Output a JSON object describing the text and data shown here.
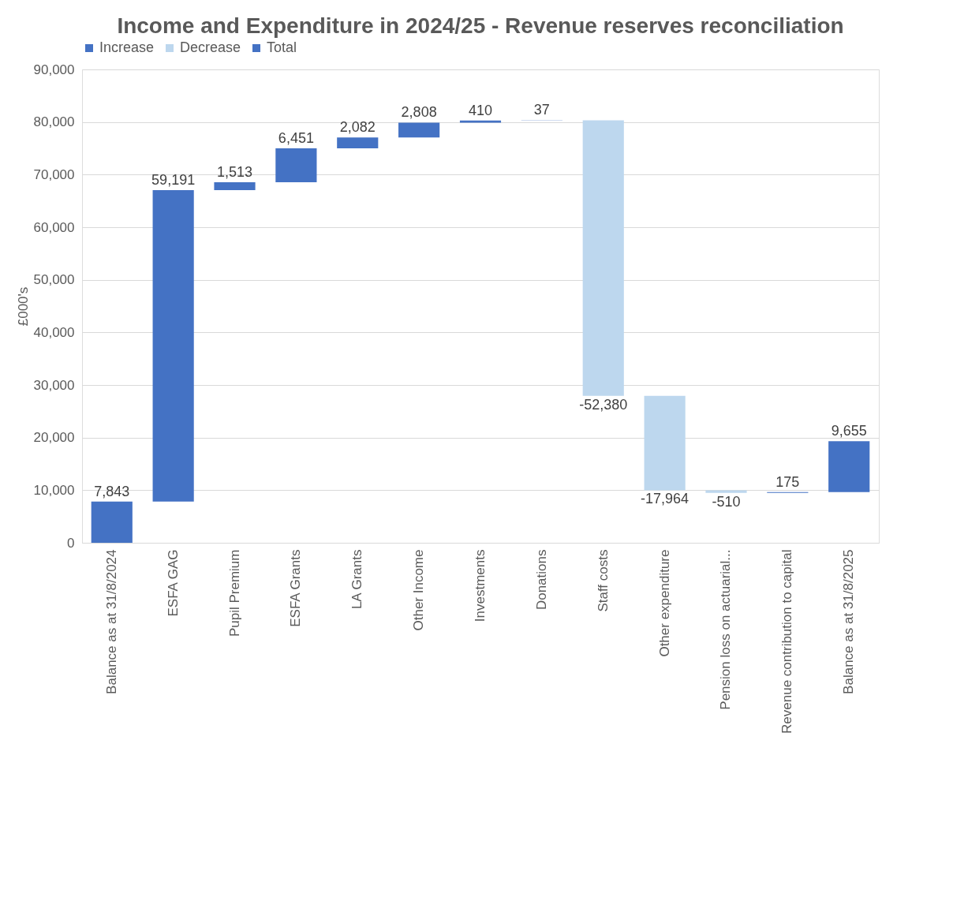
{
  "chart_data": {
    "type": "bar",
    "title": "Income and Expenditure in 2024/25 - Revenue reserves reconciliation",
    "ylabel": "£000's",
    "categories": [
      "Balance as at 31/8/2024",
      "ESFA GAG",
      "Pupil Premium",
      "ESFA Grants",
      "LA Grants",
      "Other Income",
      "Investments",
      "Donations",
      "Staff costs",
      "Other expenditure",
      "Pension loss on actuarial...",
      "Revenue contribution to capital",
      "Balance as at 31/8/2025"
    ],
    "series": [
      {
        "name": "Increase",
        "color": "#4472c4",
        "values": [
          null,
          59191,
          1513,
          6451,
          2082,
          2808,
          410,
          37,
          null,
          null,
          null,
          175,
          null
        ],
        "base": [
          null,
          7843,
          67034,
          68547,
          74998,
          77080,
          79888,
          80298,
          null,
          null,
          null,
          9481,
          null
        ],
        "value_labels": [
          null,
          "59,191",
          "1,513",
          "6,451",
          "2,082",
          "2,808",
          "410",
          "37",
          null,
          null,
          null,
          "175",
          null
        ]
      },
      {
        "name": "Decrease",
        "color": "#bdd7ee",
        "values": [
          null,
          null,
          null,
          null,
          null,
          null,
          null,
          null,
          -52380,
          -17964,
          -510,
          null,
          null
        ],
        "base": [
          null,
          null,
          null,
          null,
          null,
          null,
          null,
          null,
          80335,
          27955,
          9991,
          null,
          null
        ],
        "value_labels": [
          null,
          null,
          null,
          null,
          null,
          null,
          null,
          null,
          "-52,380",
          "-17,964",
          "-510",
          null,
          null
        ]
      },
      {
        "name": "Total",
        "color": "#4472c4",
        "values": [
          7843,
          null,
          null,
          null,
          null,
          null,
          null,
          null,
          null,
          null,
          null,
          null,
          9655
        ],
        "base": [
          0,
          null,
          null,
          null,
          null,
          null,
          null,
          null,
          null,
          null,
          null,
          null,
          9656
        ],
        "value_labels": [
          "7,843",
          null,
          null,
          null,
          null,
          null,
          null,
          null,
          null,
          null,
          null,
          null,
          "9,655"
        ]
      }
    ],
    "ylim": [
      0,
      90000
    ],
    "yticks": [
      {
        "value": 0,
        "label": "0"
      },
      {
        "value": 10000,
        "label": "10,000"
      },
      {
        "value": 20000,
        "label": "20,000"
      },
      {
        "value": 30000,
        "label": "30,000"
      },
      {
        "value": 40000,
        "label": "40,000"
      },
      {
        "value": 50000,
        "label": "50,000"
      },
      {
        "value": 60000,
        "label": "60,000"
      },
      {
        "value": 70000,
        "label": "70,000"
      },
      {
        "value": 80000,
        "label": "80,000"
      },
      {
        "value": 90000,
        "label": "90,000"
      }
    ],
    "grid": "y",
    "legend": "top"
  }
}
